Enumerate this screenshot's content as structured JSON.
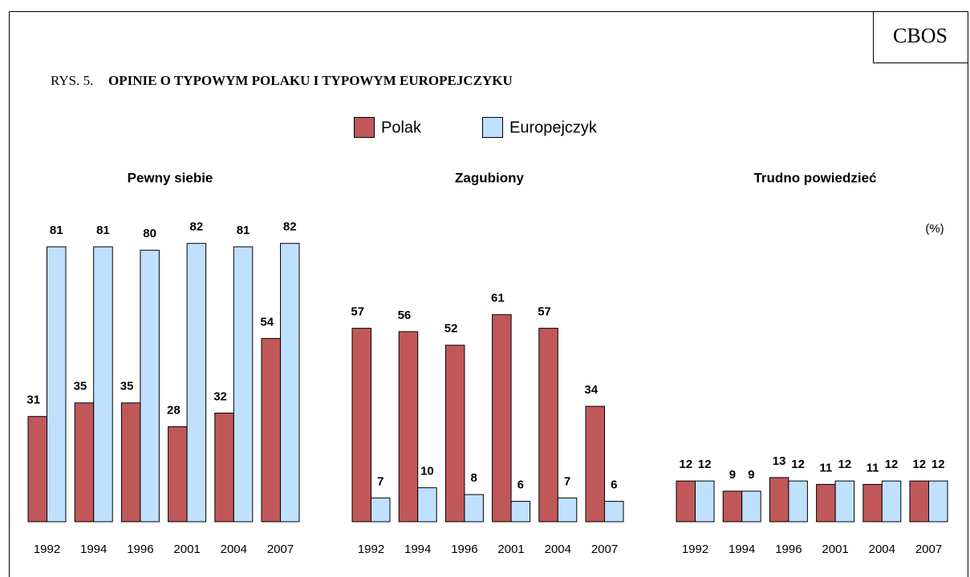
{
  "brand": "CBOS",
  "figure_label": "RYS. 5.",
  "title": "OPINIE O TYPOWYM POLAKU I TYPOWYM EUROPEJCZYKU",
  "unit": "(%)",
  "chart_data": [
    {
      "type": "bar",
      "title": "Pewny siebie",
      "categories": [
        "1992",
        "1994",
        "1996",
        "2001",
        "2004",
        "2007"
      ],
      "series": [
        {
          "name": "Polak",
          "color": "#c0585a",
          "values": [
            31,
            35,
            35,
            28,
            32,
            54
          ]
        },
        {
          "name": "Europejczyk",
          "color": "#bfe0ff",
          "values": [
            81,
            81,
            80,
            82,
            81,
            82
          ]
        }
      ]
    },
    {
      "type": "bar",
      "title": "Zagubiony",
      "categories": [
        "1992",
        "1994",
        "1996",
        "2001",
        "2004",
        "2007"
      ],
      "series": [
        {
          "name": "Polak",
          "color": "#c0585a",
          "values": [
            57,
            56,
            52,
            61,
            57,
            34
          ]
        },
        {
          "name": "Europejczyk",
          "color": "#bfe0ff",
          "values": [
            7,
            10,
            8,
            6,
            7,
            6
          ]
        }
      ]
    },
    {
      "type": "bar",
      "title": "Trudno powiedzieć",
      "categories": [
        "1992",
        "1994",
        "1996",
        "2001",
        "2004",
        "2007"
      ],
      "series": [
        {
          "name": "Polak",
          "color": "#c0585a",
          "values": [
            12,
            9,
            13,
            11,
            11,
            12
          ]
        },
        {
          "name": "Europejczyk",
          "color": "#bfe0ff",
          "values": [
            12,
            9,
            12,
            12,
            12,
            12
          ]
        }
      ]
    }
  ]
}
